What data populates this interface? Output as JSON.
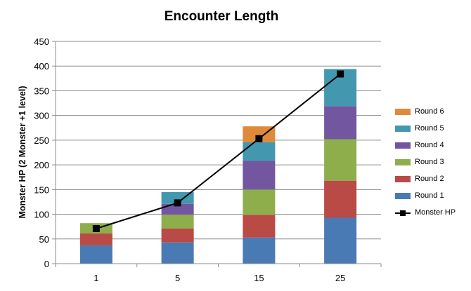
{
  "chart_data": {
    "type": "bar",
    "stacked": true,
    "title": "Encounter Length",
    "xlabel": "",
    "ylabel": "Monster HP (2 Monster +1 level)",
    "categories": [
      "1",
      "5",
      "15",
      "25"
    ],
    "ylim": [
      0,
      450
    ],
    "yticks": [
      0,
      50,
      100,
      150,
      200,
      250,
      300,
      350,
      400,
      450
    ],
    "grid": "horizontal",
    "legend_position": "right",
    "series": [
      {
        "name": "Round 1",
        "color": "#4a7ab4",
        "values": [
          37,
          43,
          53,
          93
        ]
      },
      {
        "name": "Round 2",
        "color": "#b94a45",
        "values": [
          24,
          28,
          46,
          75
        ]
      },
      {
        "name": "Round 3",
        "color": "#8eae4c",
        "values": [
          21,
          28,
          51,
          84
        ]
      },
      {
        "name": "Round 4",
        "color": "#7356a0",
        "values": [
          0,
          22,
          58,
          67
        ]
      },
      {
        "name": "Round 5",
        "color": "#4397ae",
        "values": [
          0,
          24,
          38,
          75
        ]
      },
      {
        "name": "Round 6",
        "color": "#df8a3b",
        "values": [
          0,
          0,
          32,
          0
        ]
      }
    ],
    "line_series": {
      "name": "Monster HP",
      "color": "#000000",
      "values": [
        71,
        123,
        253,
        384
      ]
    }
  }
}
